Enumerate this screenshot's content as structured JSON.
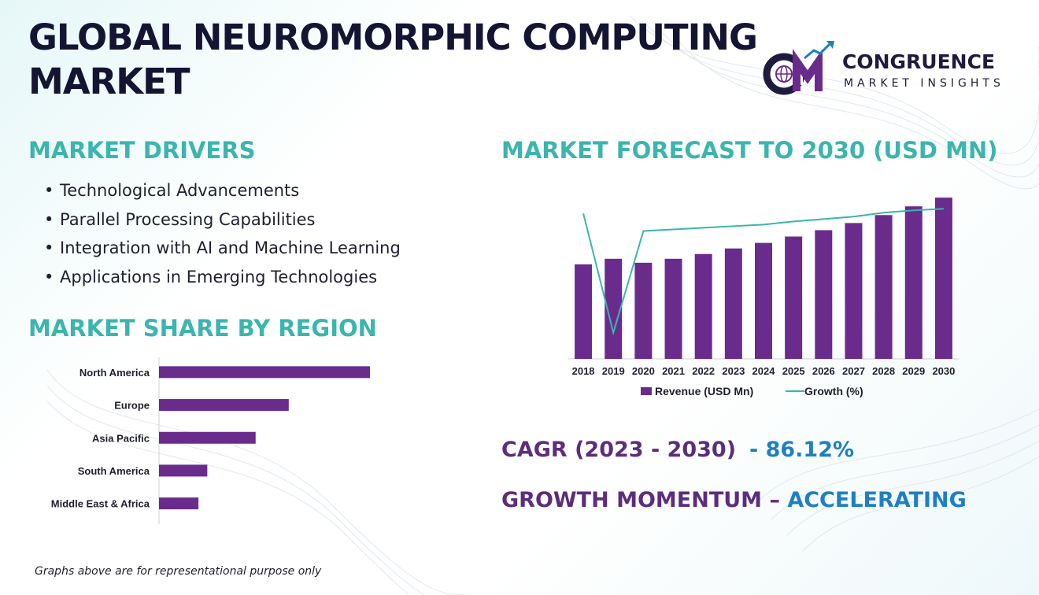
{
  "page": {
    "title": "GLOBAL NEUROMORPHIC COMPUTING MARKET",
    "footnote": "Graphs above are for representational purpose only"
  },
  "brand": {
    "name": "CONGRUENCE",
    "tagline": "MARKET INSIGHTS",
    "logo_letters": "CM",
    "colors": {
      "navy": "#1f1b3d",
      "purple": "#6a2c8c",
      "teal": "#3bb5ad"
    }
  },
  "drivers": {
    "heading": "MARKET DRIVERS",
    "items": [
      "Technological Advancements",
      "Parallel Processing Capabilities",
      "Integration with AI and Machine Learning",
      "Applications in Emerging Technologies"
    ]
  },
  "region": {
    "heading": "MARKET SHARE BY REGION"
  },
  "forecast": {
    "heading": "MARKET FORECAST TO 2030 (USD MN)"
  },
  "cagr": {
    "label": "CAGR (2023 - 2030)",
    "value": "- 86.12%"
  },
  "momentum": {
    "label": "GROWTH MOMENTUM – ",
    "value": "ACCELERATING"
  },
  "chart_data": [
    {
      "type": "bar",
      "orientation": "horizontal",
      "title": "",
      "categories": [
        "North America",
        "Europe",
        "Asia Pacific",
        "South America",
        "Middle East & Africa"
      ],
      "values": [
        100,
        61.5,
        45.8,
        22.9,
        18.7
      ],
      "bar_color": "#6a2c8c",
      "grid": false
    },
    {
      "type": "bar",
      "title": "",
      "categories": [
        "2018",
        "2019",
        "2020",
        "2021",
        "2022",
        "2023",
        "2024",
        "2025",
        "2026",
        "2027",
        "2028",
        "2029",
        "2030"
      ],
      "series": [
        {
          "name": "Revenue (USD Mn)",
          "type": "bar",
          "color": "#6a2c8c",
          "values": [
            59.5,
            63,
            60.5,
            63,
            66,
            69.5,
            73,
            77,
            81,
            85.5,
            90.5,
            96,
            101.5
          ]
        },
        {
          "name": "Growth (%)",
          "type": "line",
          "color": "#3bb5ad",
          "values": [
            91.5,
            16.5,
            80.5,
            81.5,
            82.5,
            83.5,
            84.5,
            86.5,
            88,
            89.5,
            92,
            93.5,
            94.5
          ]
        }
      ],
      "ylim": [
        0,
        105
      ],
      "legend": "bottom",
      "grid": false
    }
  ]
}
